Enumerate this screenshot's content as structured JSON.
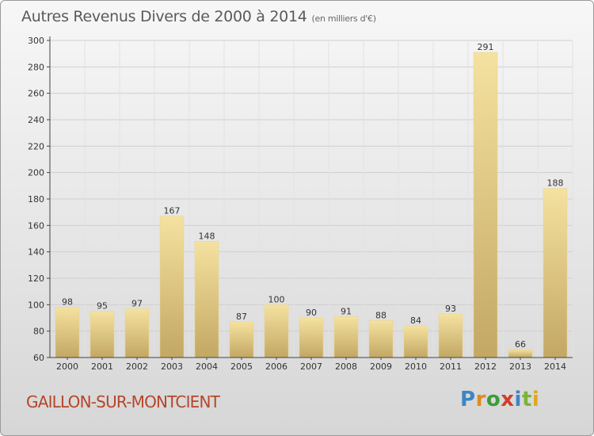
{
  "header": {
    "title": "Autres Revenus Divers de 2000 à 2014",
    "unit": "(en milliers d'€)"
  },
  "footer": {
    "city": "GAILLON-SUR-MONTCIENT",
    "logo_letters": [
      "P",
      "r",
      "o",
      "x",
      "i",
      "t",
      "i"
    ]
  },
  "colors": {
    "bar_light": "#f5e2a0",
    "bar_dark": "#c3a764",
    "grid": "#cfcfcf",
    "axis": "#444444",
    "city": "#b5462a"
  },
  "chart_data": {
    "type": "bar",
    "title": "Autres Revenus Divers de 2000 à 2014",
    "subtitle": "(en milliers d'€)",
    "categories": [
      "2000",
      "2001",
      "2002",
      "2003",
      "2004",
      "2005",
      "2006",
      "2007",
      "2008",
      "2009",
      "2010",
      "2011",
      "2012",
      "2013",
      "2014"
    ],
    "values": [
      98,
      95,
      97,
      167,
      148,
      87,
      100,
      90,
      91,
      88,
      84,
      93,
      291,
      66,
      188
    ],
    "ylim": [
      60,
      300
    ],
    "yticks": [
      60,
      80,
      100,
      120,
      140,
      160,
      180,
      200,
      220,
      240,
      260,
      280,
      300
    ],
    "grid": true,
    "xlabel": "",
    "ylabel": ""
  }
}
